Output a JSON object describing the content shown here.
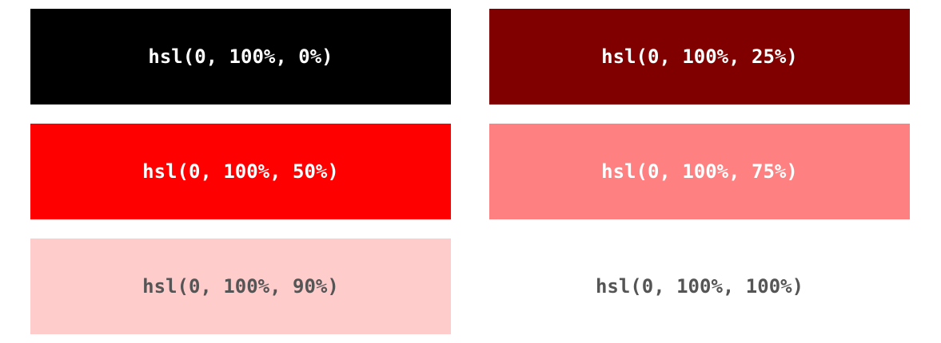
{
  "swatches": [
    {
      "label": "hsl(0, 100%, 0%)",
      "background": "#000000",
      "text_color": "#ffffff"
    },
    {
      "label": "hsl(0, 100%, 25%)",
      "background": "#800000",
      "text_color": "#ffffff"
    },
    {
      "label": "hsl(0, 100%, 50%)",
      "background": "#ff0000",
      "text_color": "#ffffff"
    },
    {
      "label": "hsl(0, 100%, 75%)",
      "background": "#ff8080",
      "text_color": "#ffffff"
    },
    {
      "label": "hsl(0, 100%, 90%)",
      "background": "#ffcccc",
      "text_color": "#555555"
    },
    {
      "label": "hsl(0, 100%, 100%)",
      "background": "#ffffff",
      "text_color": "#555555"
    }
  ]
}
